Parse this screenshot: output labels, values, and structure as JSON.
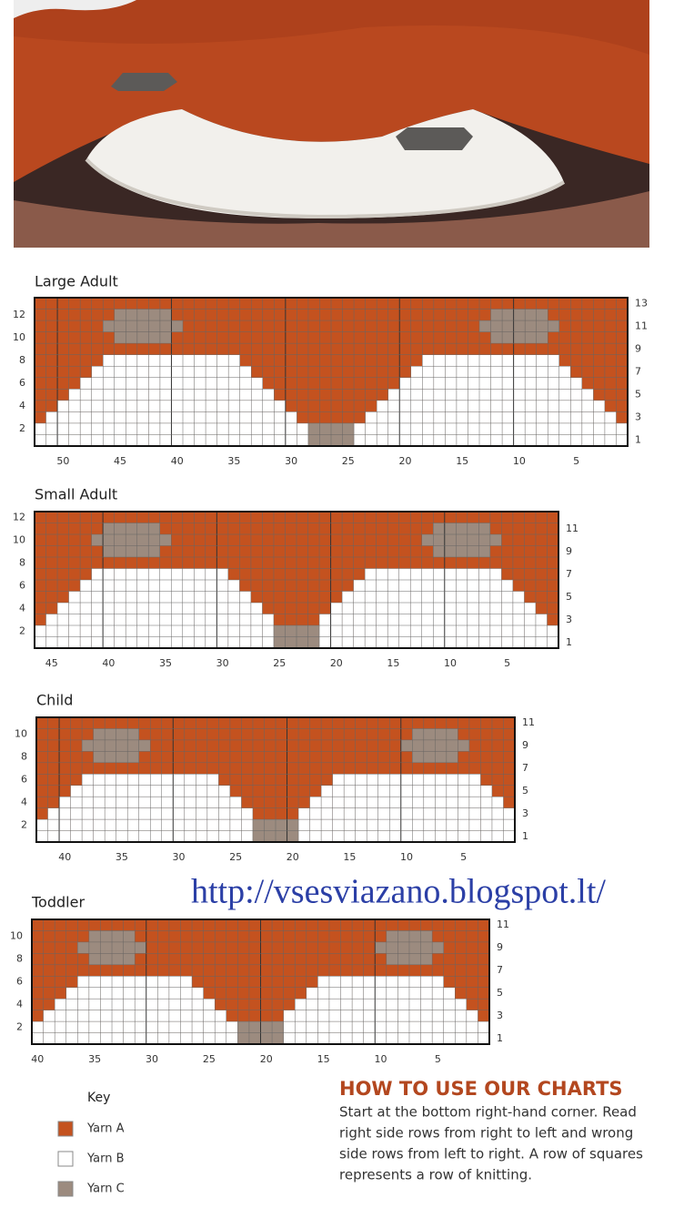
{
  "charts": [
    {
      "title": "Large Adult",
      "left_rows": [
        12,
        10,
        8,
        6,
        4,
        2
      ],
      "right_rows": [
        13,
        11,
        9,
        7,
        5,
        3,
        1
      ],
      "columns": [
        50,
        45,
        40,
        35,
        30,
        25,
        20,
        15,
        10,
        5
      ]
    },
    {
      "title": "Small Adult",
      "left_rows": [
        12,
        10,
        8,
        6,
        4,
        2
      ],
      "right_rows": [
        11,
        9,
        7,
        5,
        3,
        1
      ],
      "columns": [
        45,
        40,
        35,
        30,
        25,
        20,
        15,
        10,
        5
      ]
    },
    {
      "title": "Child",
      "left_rows": [
        10,
        8,
        6,
        4,
        2
      ],
      "right_rows": [
        11,
        9,
        7,
        5,
        3,
        1
      ],
      "columns": [
        40,
        35,
        30,
        25,
        20,
        15,
        10,
        5
      ]
    },
    {
      "title": "Toddler",
      "left_rows": [
        10,
        8,
        6,
        4,
        2
      ],
      "right_rows": [
        11,
        9,
        7,
        5,
        3,
        1
      ],
      "columns": [
        40,
        35,
        30,
        25,
        20,
        15,
        10,
        5
      ]
    }
  ],
  "watermark": "http://vsesviazano.blogspot.lt/",
  "key": {
    "title": "Key",
    "items": [
      {
        "label": "Yarn A",
        "color": "#c4521f"
      },
      {
        "label": "Yarn B",
        "color": "#ffffff"
      },
      {
        "label": "Yarn C",
        "color": "#9c8b7f"
      }
    ]
  },
  "how_to": {
    "title": "HOW TO USE OUR CHARTS",
    "lines": [
      "Start at the bottom right-hand corner. Read",
      "right side rows from right to left and wrong",
      "side rows from left to right. A row of squares",
      "represents a row of knitting."
    ]
  }
}
